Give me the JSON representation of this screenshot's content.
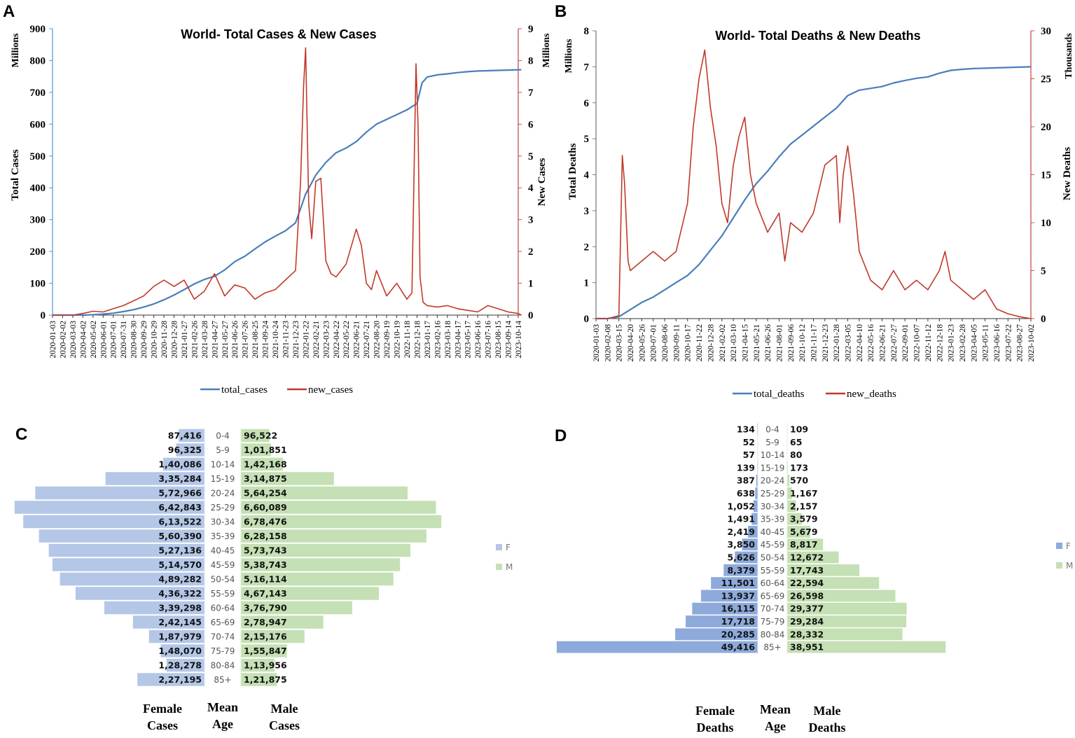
{
  "panels": {
    "a": {
      "letter": "A",
      "chart_data": {
        "type": "line",
        "title": "World- Total Cases & New Cases",
        "xlabel": "",
        "ylabel": "Total Cases",
        "ylabel_unit": "Millions",
        "y2label": "New Cases",
        "y2label_unit": "Millions",
        "ylim": [
          0,
          900
        ],
        "y2lim": [
          0,
          9
        ],
        "yticks": [
          0,
          100,
          200,
          300,
          400,
          500,
          600,
          700,
          800,
          900
        ],
        "y2ticks": [
          0,
          1,
          2,
          3,
          4,
          5,
          6,
          7,
          8,
          9
        ],
        "xticks": [
          "2020-01-03",
          "2020-02-02",
          "2020-03-03",
          "2020-04-02",
          "2020-05-02",
          "2020-06-01",
          "2020-07-01",
          "2020-07-31",
          "2020-08-30",
          "2020-09-29",
          "2020-10-29",
          "2020-11-28",
          "2020-12-28",
          "2021-01-27",
          "2021-02-26",
          "2021-03-28",
          "2021-04-27",
          "2021-05-27",
          "2021-06-26",
          "2021-07-26",
          "2021-08-25",
          "2021-09-24",
          "2021-10-24",
          "2021-11-23",
          "2021-12-23",
          "2022-01-22",
          "2022-02-21",
          "2022-03-23",
          "2022-04-22",
          "2022-05-22",
          "2022-06-21",
          "2022-07-21",
          "2022-08-20",
          "2022-09-19",
          "2022-10-19",
          "2022-11-18",
          "2022-12-18",
          "2023-01-17",
          "2023-02-16",
          "2023-03-18",
          "2023-04-17",
          "2023-05-17",
          "2023-06-16",
          "2023-07-16",
          "2023-08-15",
          "2023-09-14",
          "2023-10-14"
        ],
        "legend": [
          "total_cases",
          "new_cases"
        ],
        "legend_position": "bottom",
        "series": [
          {
            "name": "total_cases",
            "axis": "left",
            "color": "#4a7ebb",
            "x": [
              0,
              3,
              4,
              5,
              6,
              7,
              8,
              9,
              10,
              11,
              12,
              13,
              14,
              15,
              16,
              17,
              18,
              19,
              20,
              21,
              22,
              23,
              24,
              25,
              26,
              27,
              28,
              29,
              30,
              31,
              32,
              33,
              34,
              35,
              36,
              36.5,
              37,
              38,
              39,
              40,
              41,
              42,
              43,
              44,
              45,
              46,
              46.3
            ],
            "y": [
              0,
              0.1,
              1,
              3,
              6,
              11,
              17,
              25,
              35,
              48,
              63,
              80,
              98,
              112,
              122,
              142,
              168,
              185,
              208,
              230,
              248,
              265,
              290,
              380,
              440,
              480,
              510,
              525,
              545,
              575,
              600,
              615,
              630,
              645,
              665,
              730,
              748,
              755,
              758,
              762,
              765,
              767,
              768,
              769,
              770,
              771,
              771
            ]
          },
          {
            "name": "new_cases",
            "axis": "right",
            "color": "#c0392b",
            "x": [
              0,
              2,
              3,
              4,
              5,
              6,
              7,
              8,
              9,
              10,
              11,
              12,
              13,
              14,
              15,
              16,
              17,
              18,
              19,
              20,
              21,
              22,
              23,
              24,
              24.5,
              24.8,
              25,
              25.3,
              25.6,
              26,
              26.5,
              27,
              27.5,
              28,
              29,
              30,
              30.5,
              31,
              31.5,
              32,
              33,
              34,
              35,
              35.5,
              35.9,
              36.1,
              36.3,
              36.6,
              37,
              38,
              39,
              40,
              41,
              42,
              43,
              44,
              45,
              46,
              46.3
            ],
            "y": [
              0,
              0,
              0.05,
              0.12,
              0.1,
              0.2,
              0.3,
              0.45,
              0.6,
              0.9,
              1.1,
              0.9,
              1.1,
              0.5,
              0.75,
              1.3,
              0.6,
              0.95,
              0.85,
              0.5,
              0.7,
              0.8,
              1.1,
              1.4,
              4.2,
              7.2,
              8.4,
              3.5,
              2.4,
              4.2,
              4.3,
              1.7,
              1.3,
              1.2,
              1.6,
              2.7,
              2.2,
              1.0,
              0.8,
              1.4,
              0.6,
              1.0,
              0.5,
              0.7,
              7.9,
              6.0,
              1.2,
              0.4,
              0.3,
              0.25,
              0.3,
              0.2,
              0.15,
              0.1,
              0.3,
              0.2,
              0.1,
              0.05,
              0
            ]
          }
        ]
      }
    },
    "b": {
      "letter": "B",
      "chart_data": {
        "type": "line",
        "title": "World- Total Deaths & New Deaths",
        "xlabel": "",
        "ylabel": "Total Deaths",
        "ylabel_unit": "Millions",
        "y2label": "New Deaths",
        "y2label_unit": "Thousands",
        "ylim": [
          0,
          8
        ],
        "y2lim": [
          0,
          30
        ],
        "yticks": [
          0,
          1,
          2,
          3,
          4,
          5,
          6,
          7,
          8
        ],
        "y2ticks": [
          0,
          5,
          10,
          15,
          20,
          25,
          30
        ],
        "xticks": [
          "2020-01-03",
          "2020-02-08",
          "2020-03-15",
          "2020-04-20",
          "2020-05-26",
          "2020-07-01",
          "2020-08-06",
          "2020-09-11",
          "2020-10-17",
          "2020-11-22",
          "2020-12-28",
          "2021-02-02",
          "2021-03-10",
          "2021-04-15",
          "2021-05-21",
          "2021-06-26",
          "2021-08-01",
          "2021-09-06",
          "2021-10-12",
          "2021-11-17",
          "2021-12-23",
          "2022-01-28",
          "2022-03-05",
          "2022-04-10",
          "2022-05-16",
          "2022-06-21",
          "2022-07-27",
          "2022-09-01",
          "2022-10-07",
          "2022-11-12",
          "2022-12-18",
          "2023-01-23",
          "2023-02-28",
          "2023-04-05",
          "2023-05-11",
          "2023-06-16",
          "2023-07-22",
          "2023-08-27",
          "2023-10-02"
        ],
        "legend": [
          "total_deaths",
          "new_deaths"
        ],
        "legend_position": "bottom",
        "series": [
          {
            "name": "total_deaths",
            "axis": "left",
            "color": "#4a7ebb",
            "x": [
              0,
              1,
              2,
              3,
              4,
              5,
              6,
              7,
              8,
              9,
              10,
              11,
              12,
              13,
              14,
              15,
              16,
              17,
              18,
              19,
              20,
              21,
              22,
              23,
              24,
              25,
              26,
              27,
              28,
              29,
              30,
              31,
              32,
              33,
              34,
              35,
              36,
              37,
              38
            ],
            "y": [
              0,
              0,
              0.05,
              0.25,
              0.45,
              0.6,
              0.8,
              1.0,
              1.2,
              1.5,
              1.9,
              2.3,
              2.8,
              3.3,
              3.75,
              4.1,
              4.5,
              4.85,
              5.1,
              5.35,
              5.6,
              5.85,
              6.2,
              6.35,
              6.4,
              6.45,
              6.55,
              6.62,
              6.68,
              6.72,
              6.82,
              6.9,
              6.93,
              6.95,
              6.96,
              6.97,
              6.98,
              6.99,
              7.0
            ]
          },
          {
            "name": "new_deaths",
            "axis": "right",
            "color": "#c0392b",
            "x": [
              0,
              1,
              2,
              2.3,
              2.5,
              2.8,
              3,
              4,
              5,
              6,
              7,
              8,
              8.5,
              9,
              9.5,
              10,
              10.5,
              11,
              11.5,
              12,
              12.5,
              13,
              13.5,
              14,
              15,
              16,
              16.5,
              17,
              18,
              19,
              20,
              21,
              21.3,
              21.6,
              22,
              22.5,
              23,
              24,
              25,
              26,
              27,
              28,
              29,
              30,
              30.5,
              31,
              32,
              33,
              34,
              35,
              36,
              37,
              38
            ],
            "y": [
              0,
              0,
              0.3,
              17,
              14,
              6,
              5,
              6,
              7,
              6,
              7,
              12,
              20,
              25,
              28,
              22,
              18,
              12,
              10,
              16,
              19,
              21,
              15,
              12,
              9,
              11,
              6,
              10,
              9,
              11,
              16,
              17,
              10,
              15,
              18,
              13,
              7,
              4,
              3,
              5,
              3,
              4,
              3,
              5,
              7,
              4,
              3,
              2,
              3,
              1,
              0.5,
              0.2,
              0
            ]
          }
        ]
      }
    },
    "c": {
      "letter": "C",
      "chart_data": {
        "type": "bar",
        "orientation": "population-pyramid",
        "categories": [
          "0-4",
          "5-9",
          "10-14",
          "15-19",
          "20-24",
          "25-29",
          "30-34",
          "35-39",
          "40-45",
          "45-59",
          "50-54",
          "55-59",
          "60-64",
          "65-69",
          "70-74",
          "75-79",
          "80-84",
          "85+"
        ],
        "series": [
          {
            "name": "F",
            "color": "#b4c7e7",
            "values": [
              87416,
              96325,
              140086,
              335284,
              572966,
              642843,
              613522,
              560390,
              527136,
              514570,
              489282,
              436322,
              339298,
              242145,
              187979,
              148070,
              128278,
              227195
            ],
            "labels": [
              "87,416",
              "96,325",
              "1,40,086",
              "3,35,284",
              "5,72,966",
              "6,42,843",
              "6,13,522",
              "5,60,390",
              "5,27,136",
              "5,14,570",
              "4,89,282",
              "4,36,322",
              "3,39,298",
              "2,42,145",
              "1,87,979",
              "1,48,070",
              "1,28,278",
              "2,27,195"
            ]
          },
          {
            "name": "M",
            "color": "#c5e0b4",
            "values": [
              96522,
              101851,
              142168,
              314875,
              564254,
              660089,
              678476,
              628158,
              573743,
              538743,
              516114,
              467143,
              376790,
              278947,
              215176,
              155847,
              113956,
              121875
            ],
            "labels": [
              "96,522",
              "1,01,851",
              "1,42,168",
              "3,14,875",
              "5,64,254",
              "6,60,089",
              "6,78,476",
              "6,28,158",
              "5,73,743",
              "5,38,743",
              "5,16,114",
              "4,67,143",
              "3,76,790",
              "2,78,947",
              "2,15,176",
              "1,55,847",
              "1,13,956",
              "1,21,875"
            ]
          }
        ],
        "legend": [
          "F",
          "M"
        ],
        "axis_titles": {
          "left": [
            "Female",
            "Cases"
          ],
          "center": [
            "Mean",
            "Age"
          ],
          "right": [
            "Male",
            "Cases"
          ]
        }
      }
    },
    "d": {
      "letter": "D",
      "chart_data": {
        "type": "bar",
        "orientation": "population-pyramid",
        "categories": [
          "0-4",
          "5-9",
          "10-14",
          "15-19",
          "20-24",
          "25-29",
          "30-34",
          "35-39",
          "40-45",
          "45-59",
          "50-54",
          "55-59",
          "60-64",
          "65-69",
          "70-74",
          "75-79",
          "80-84",
          "85+"
        ],
        "series": [
          {
            "name": "F",
            "color": "#8eaadb",
            "values": [
              134,
              52,
              57,
              139,
              387,
              638,
              1052,
              1491,
              2419,
              3850,
              5626,
              8379,
              11501,
              13937,
              16115,
              17718,
              20285,
              49416
            ],
            "labels": [
              "134",
              "52",
              "57",
              "139",
              "387",
              "638",
              "1,052",
              "1,491",
              "2,419",
              "3,850",
              "5,626",
              "8,379",
              "11,501",
              "13,937",
              "16,115",
              "17,718",
              "20,285",
              "49,416"
            ]
          },
          {
            "name": "M",
            "color": "#c5e0b4",
            "values": [
              109,
              65,
              80,
              173,
              570,
              1167,
              2157,
              3579,
              5679,
              8817,
              12672,
              17743,
              22594,
              26598,
              29377,
              29284,
              28332,
              38951
            ],
            "labels": [
              "109",
              "65",
              "80",
              "173",
              "570",
              "1,167",
              "2,157",
              "3,579",
              "5,679",
              "8,817",
              "12,672",
              "17,743",
              "22,594",
              "26,598",
              "29,377",
              "29,284",
              "28,332",
              "38,951"
            ]
          }
        ],
        "legend": [
          "F",
          "M"
        ],
        "axis_titles": {
          "left": [
            "Female",
            "Deaths"
          ],
          "center": [
            "Mean",
            "Age"
          ],
          "right": [
            "Male",
            "Deaths"
          ]
        }
      }
    }
  },
  "colors": {
    "blue": "#4a7ebb",
    "red": "#c0392b",
    "axis_a": "#5b9bd5",
    "axis_b": "#c0504d"
  }
}
